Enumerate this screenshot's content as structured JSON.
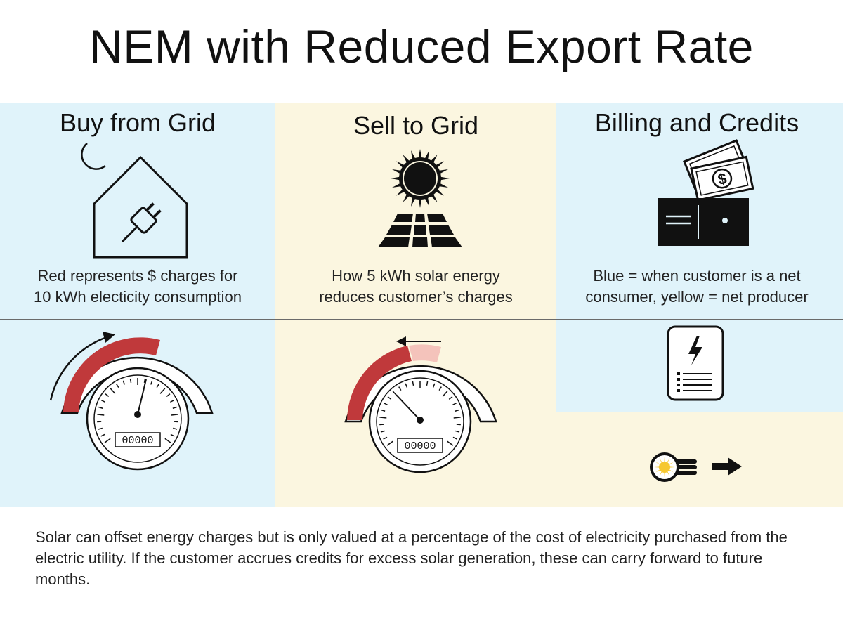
{
  "title": "NEM with Reduced Export Rate",
  "columns": [
    {
      "title": "Buy from Grid",
      "caption_line1": "Red represents $ charges for",
      "caption_line2": "10 kWh electicity consumption"
    },
    {
      "title": "Sell to Grid",
      "caption_line1": "How 5 kWh solar energy",
      "caption_line2": "reduces customer’s charges"
    },
    {
      "title": "Billing and Credits",
      "caption_line1": "Blue = when customer is a net",
      "caption_line2": "consumer, yellow = net producer"
    }
  ],
  "meter_digits": "00000",
  "dollar_sign": "$",
  "footer_text": "Solar can offset energy charges but is only valued at a percentage of the cost of electricity purchased from the electric utility. If the customer accrues credits for excess solar generation, these can carry forward to future months.",
  "colors": {
    "blue_bg": "#e0f3fa",
    "yellow_bg": "#fbf6e0",
    "charge_red": "#c0393b",
    "credit_pink": "#f4c3bb",
    "sun_yellow": "#f6c830"
  }
}
